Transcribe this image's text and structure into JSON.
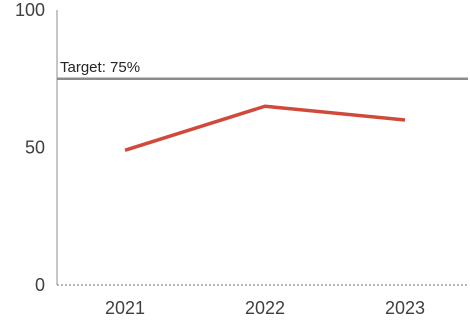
{
  "chart_data": {
    "type": "line",
    "categories": [
      "2021",
      "2022",
      "2023"
    ],
    "series": [
      {
        "values": [
          49,
          65,
          60
        ],
        "color": "#d04a3b"
      }
    ],
    "reference_line": {
      "value": 75,
      "label": "Target: 75%",
      "color": "#8c8c8c"
    },
    "ylim": [
      0,
      100
    ],
    "yticks": [
      0,
      50,
      100
    ],
    "title": "",
    "xlabel": "",
    "ylabel": "",
    "grid": false,
    "legend": "none"
  }
}
